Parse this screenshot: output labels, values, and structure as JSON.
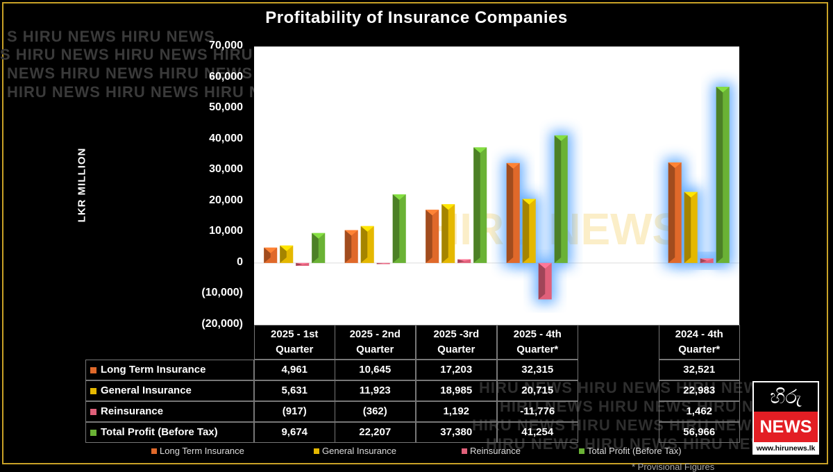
{
  "title": "Profitability of Insurance Companies",
  "watermark": {
    "lines": [
      "S HIRU NEWS HIRU NEWS",
      "S HIRU NEWS HIRU NEWS HIRU",
      "NEWS HIRU NEWS  HIRU NEWS",
      "HIRU NEWS  HIRU NEWS HIRU N"
    ],
    "table_lines": [
      "HIRU NEWS HIRU NEWS HIRU NEWS",
      "HIRU NEWS HIRU NEWS HIRU NEWS",
      "HIRU NEWS HIRU NEWS HIRU NEWS",
      "HIRU NEWS HIRU NEWS HIRU NEWS"
    ],
    "center": "HIRU NEWS"
  },
  "chart_data": {
    "type": "bar",
    "title": "Profitability of Insurance Companies",
    "ylabel": "LKR MILLION",
    "xlabel": "",
    "ylim": [
      -20000,
      70000
    ],
    "yticks": [
      "70,000",
      "60,000",
      "50,000",
      "40,000",
      "30,000",
      "20,000",
      "10,000",
      "0",
      "(10,000)",
      "(20,000)"
    ],
    "categories": [
      [
        "2025 - 1st",
        "Quarter"
      ],
      [
        "2025 - 2nd",
        "Quarter"
      ],
      [
        "2025 -3rd",
        "Quarter"
      ],
      [
        "2025 - 4th",
        "Quarter*"
      ],
      [
        "",
        ""
      ],
      [
        "2024 - 4th",
        "Quarter*"
      ]
    ],
    "highlighted_categories": [
      3,
      5
    ],
    "series": [
      {
        "name": "Long Term Insurance",
        "color": "#e0692a",
        "values": [
          4961,
          10645,
          17203,
          32315,
          null,
          32521
        ],
        "labels": [
          "4,961",
          "10,645",
          "17,203",
          "32,315",
          "",
          "32,521"
        ]
      },
      {
        "name": "General Insurance",
        "color": "#e5b800",
        "values": [
          5631,
          11923,
          18985,
          20715,
          null,
          22983
        ],
        "labels": [
          "5,631",
          "11,923",
          "18,985",
          "20,715",
          "",
          "22,983"
        ]
      },
      {
        "name": "Reinsurance",
        "color": "#e0607a",
        "values": [
          -917,
          -362,
          1192,
          -11776,
          null,
          1462
        ],
        "labels": [
          "(917)",
          "(362)",
          "1,192",
          "-11,776",
          "",
          "1,462"
        ]
      },
      {
        "name": "Total Profit (Before Tax)",
        "color": "#6ab235",
        "values": [
          9674,
          22207,
          37380,
          41254,
          null,
          56966
        ],
        "labels": [
          "9,674",
          "22,207",
          "37,380",
          "41,254",
          "",
          "56,966"
        ]
      }
    ],
    "legend_position": "bottom",
    "footnote": "* Provisional Figures"
  },
  "logo": {
    "top_text": "හිරු",
    "brand": "NEWS",
    "url": "www.hirunews.lk"
  }
}
